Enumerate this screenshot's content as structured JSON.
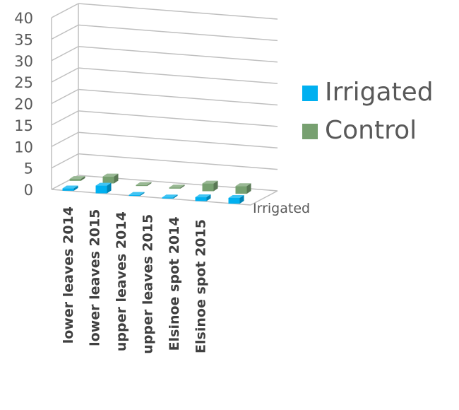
{
  "chart_data": {
    "type": "bar",
    "subtype": "3d-clustered",
    "title": "",
    "xlabel": "",
    "ylabel": "",
    "ylim": [
      0,
      40
    ],
    "yticks": [
      0,
      5,
      10,
      15,
      20,
      25,
      30,
      35,
      40
    ],
    "grid": true,
    "legend_position": "right",
    "categories": [
      "lower leaves 2014",
      "lower leaves 2015",
      "upper leaves 2014",
      "upper leaves 2015",
      "Elsinoe spot 2014",
      "Elsinoe spot 2015"
    ],
    "depth_label": "Irrigated",
    "series": [
      {
        "name": "Irrigated",
        "color": "#00B0F0",
        "values": [
          0.6,
          2.0,
          0.2,
          0.3,
          1.0,
          1.5
        ]
      },
      {
        "name": "Control",
        "color": "#77A070",
        "values": [
          0.5,
          1.8,
          0.2,
          0.3,
          2.0,
          2.0
        ]
      }
    ]
  }
}
